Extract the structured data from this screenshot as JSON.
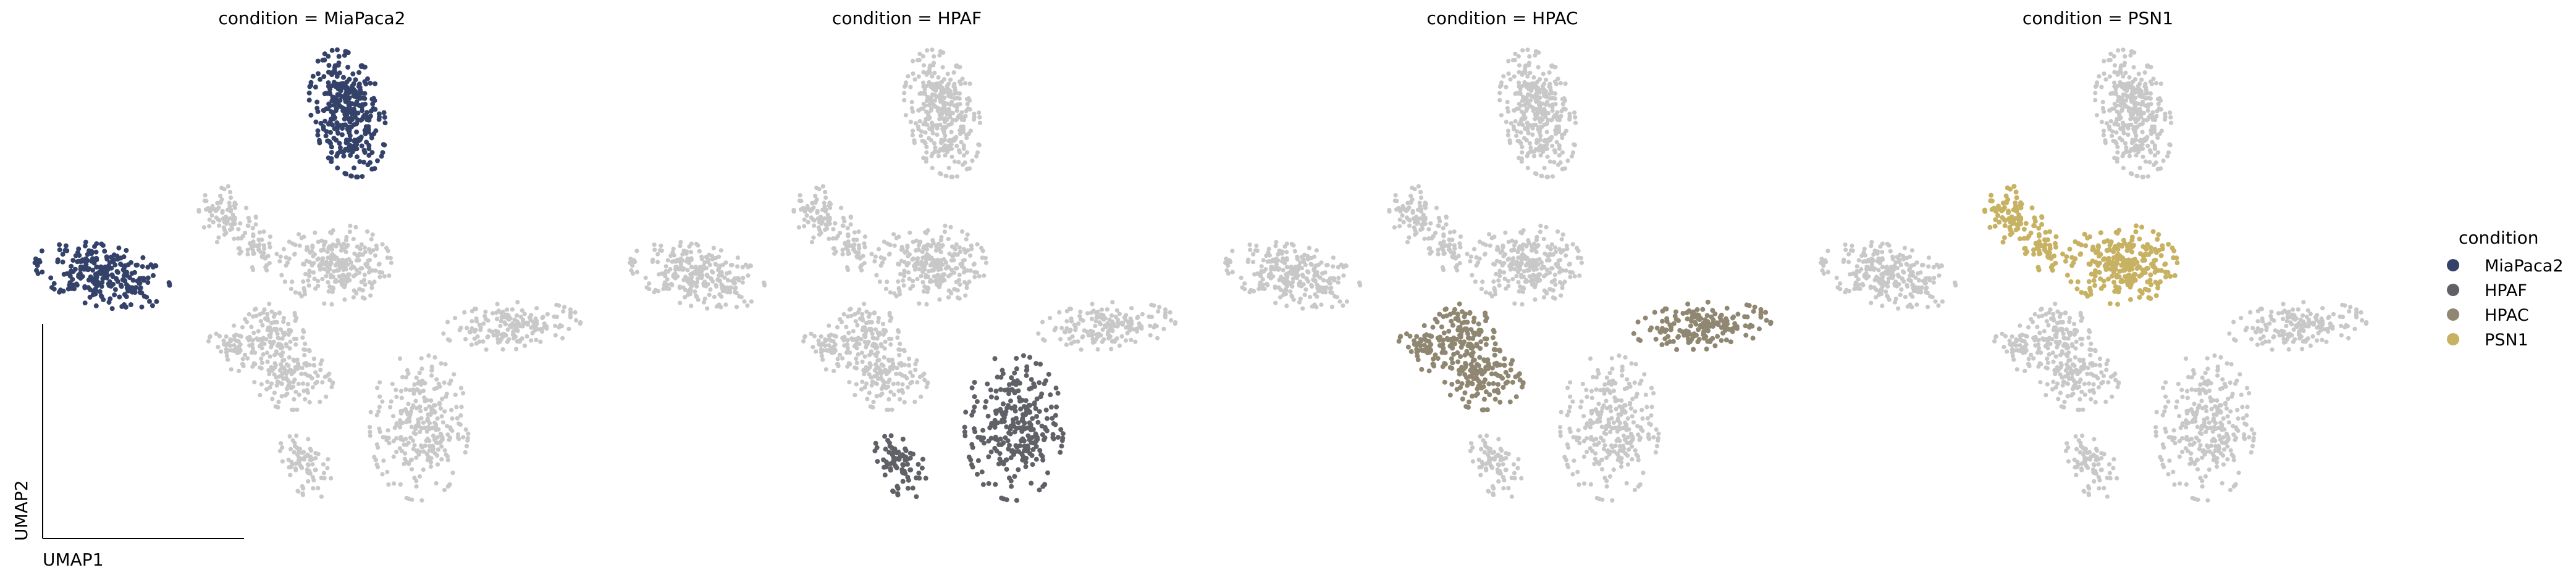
{
  "chart_data": {
    "type": "scatter",
    "embedding": "UMAP",
    "xlabel": "UMAP1",
    "ylabel": "UMAP2",
    "panels": [
      {
        "title": "condition = MiaPaca2",
        "highlight": "MiaPaca2"
      },
      {
        "title": "condition = HPAF",
        "highlight": "HPAF"
      },
      {
        "title": "condition = HPAC",
        "highlight": "HPAC"
      },
      {
        "title": "condition = PSN1",
        "highlight": "PSN1"
      }
    ],
    "background_color": "#c8c8c8",
    "legend": {
      "title": "condition",
      "placement": "right",
      "items": [
        {
          "label": "MiaPaca2",
          "color": "#34426a"
        },
        {
          "label": "HPAF",
          "color": "#5f6167"
        },
        {
          "label": "HPAC",
          "color": "#8f8771"
        },
        {
          "label": "PSN1",
          "color": "#c7b263"
        }
      ]
    },
    "clusters": [
      {
        "id": "top-blob",
        "condition": "MiaPaca2",
        "cx": 6.6,
        "cy": 9.2,
        "sx": 0.55,
        "sy": 1.05,
        "rot": 12,
        "n": 340
      },
      {
        "id": "left-blob",
        "condition": "MiaPaca2",
        "cx": -1.6,
        "cy": 3.4,
        "sx": 1.05,
        "sy": 0.5,
        "rot": -14,
        "n": 260
      },
      {
        "id": "center-upper",
        "condition": "PSN1",
        "cx": 6.2,
        "cy": 3.8,
        "sx": 0.85,
        "sy": 0.65,
        "rot": 0,
        "n": 260
      },
      {
        "id": "upper-left-arm",
        "condition": "PSN1",
        "cx": 2.6,
        "cy": 5.5,
        "sx": 0.4,
        "sy": 0.55,
        "rot": 30,
        "n": 90
      },
      {
        "id": "neck",
        "condition": "PSN1",
        "cx": 3.6,
        "cy": 4.3,
        "sx": 0.28,
        "sy": 0.35,
        "rot": 20,
        "n": 45
      },
      {
        "id": "center-mid",
        "condition": "HPAC",
        "cx": 4.2,
        "cy": 1.2,
        "sx": 0.55,
        "sy": 0.55,
        "rot": 0,
        "n": 120
      },
      {
        "id": "center-lower",
        "condition": "HPAC",
        "cx": 4.8,
        "cy": -0.3,
        "sx": 0.6,
        "sy": 0.5,
        "rot": 0,
        "n": 120
      },
      {
        "id": "left-arm",
        "condition": "HPAC",
        "cx": 2.9,
        "cy": 0.8,
        "sx": 0.45,
        "sy": 0.35,
        "rot": -25,
        "n": 60
      },
      {
        "id": "right-blob",
        "condition": "HPAC",
        "cx": 12.1,
        "cy": 1.6,
        "sx": 1.05,
        "sy": 0.38,
        "rot": 5,
        "n": 170
      },
      {
        "id": "bottom-right",
        "condition": "HPAF",
        "cx": 9.0,
        "cy": -2.0,
        "sx": 0.75,
        "sy": 1.2,
        "rot": 0,
        "n": 280
      },
      {
        "id": "bottom-left",
        "condition": "HPAF",
        "cx": 5.2,
        "cy": -3.3,
        "sx": 0.35,
        "sy": 0.6,
        "rot": 20,
        "n": 80
      }
    ],
    "grid": false,
    "axis_ticks": false
  }
}
